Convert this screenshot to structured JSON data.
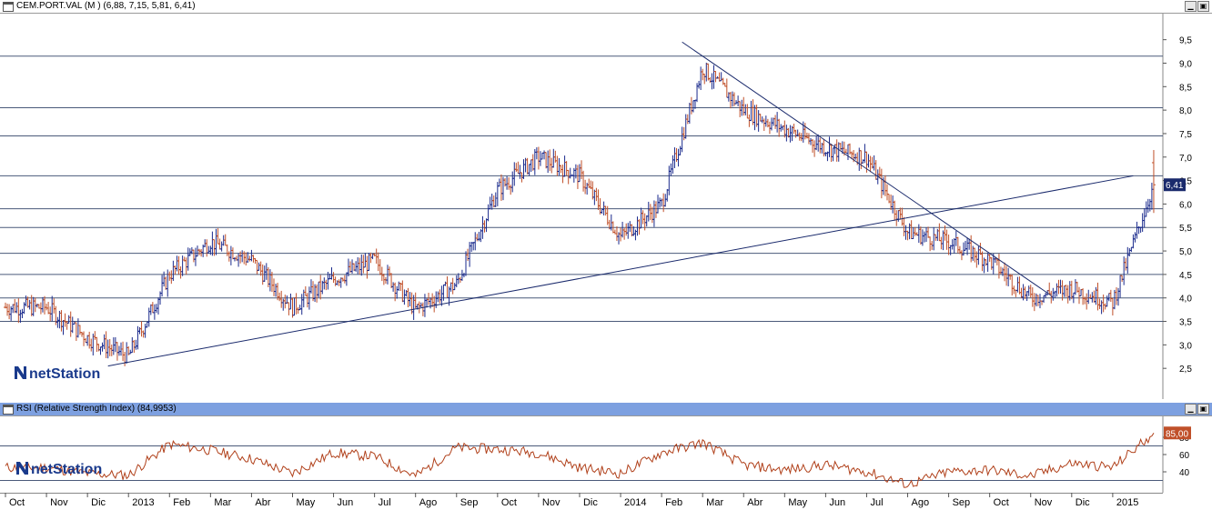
{
  "main_panel": {
    "title": "CEM.PORT.VAL (M ) (6,88, 7,15, 5,81, 6,41)",
    "watermark": "netStation",
    "minimize_icon": "minimize-icon",
    "maximize_icon": "maximize-icon"
  },
  "rsi_panel": {
    "title": "RSI (Relative Strength Index) (84,9953)",
    "watermark": "netStation",
    "header_color": "#7da0e0"
  },
  "x_axis_labels": [
    "Oct",
    "Nov",
    "Dic",
    "2013",
    "Feb",
    "Mar",
    "Abr",
    "May",
    "Jun",
    "Jul",
    "Ago",
    "Sep",
    "Oct",
    "Nov",
    "Dic",
    "2014",
    "Feb",
    "Mar",
    "Abr",
    "May",
    "Jun",
    "Jul",
    "Ago",
    "Sep",
    "Oct",
    "Nov",
    "Dic",
    "2015"
  ],
  "colors": {
    "up": "#1a2a8c",
    "down": "#c0502a",
    "line": "#1a2a6c",
    "rsi": "#b0401a",
    "grid": "#6b7a9a"
  },
  "chart_data": [
    {
      "type": "candlestick",
      "title": "CEM.PORT.VAL (M ) (6,88, 7,15, 5,81, 6,41)",
      "ohlc_last": {
        "open": 6.88,
        "high": 7.15,
        "low": 5.81,
        "close": 6.41
      },
      "last_value_label": "6,41",
      "y_ticks": [
        "2,5",
        "3,0",
        "3,5",
        "4,0",
        "4,5",
        "5,0",
        "5,5",
        "6,0",
        "6,5",
        "7,0",
        "7,5",
        "8,0",
        "8,5",
        "9,0",
        "9,5"
      ],
      "ylim": [
        2.0,
        9.9
      ],
      "horizontal_levels": [
        3.5,
        4.0,
        4.5,
        4.95,
        5.5,
        5.9,
        6.6,
        7.45,
        8.05,
        9.15
      ],
      "trendlines": [
        {
          "from": [
            "2012-12",
            2.55
          ],
          "to": [
            "2015-01",
            6.6
          ]
        },
        {
          "from": [
            "2014-02",
            9.45
          ],
          "to": [
            "2014-11",
            4.05
          ]
        }
      ],
      "monthly_close": [
        {
          "x": "2012-10",
          "value": 3.8
        },
        {
          "x": "2012-11",
          "value": 3.15
        },
        {
          "x": "2012-12",
          "value": 2.75
        },
        {
          "x": "2013-01",
          "value": 4.5
        },
        {
          "x": "2013-02",
          "value": 5.2
        },
        {
          "x": "2013-03",
          "value": 4.8
        },
        {
          "x": "2013-04",
          "value": 3.8
        },
        {
          "x": "2013-05",
          "value": 4.4
        },
        {
          "x": "2013-06",
          "value": 4.8
        },
        {
          "x": "2013-07",
          "value": 3.75
        },
        {
          "x": "2013-08",
          "value": 4.3
        },
        {
          "x": "2013-09",
          "value": 6.3
        },
        {
          "x": "2013-10",
          "value": 7.0
        },
        {
          "x": "2013-11",
          "value": 6.6
        },
        {
          "x": "2013-12",
          "value": 5.3
        },
        {
          "x": "2014-01",
          "value": 6.0
        },
        {
          "x": "2014-02",
          "value": 8.9
        },
        {
          "x": "2014-03",
          "value": 8.0
        },
        {
          "x": "2014-04",
          "value": 7.6
        },
        {
          "x": "2014-05",
          "value": 7.2
        },
        {
          "x": "2014-06",
          "value": 7.0
        },
        {
          "x": "2014-07",
          "value": 5.4
        },
        {
          "x": "2014-08",
          "value": 5.2
        },
        {
          "x": "2014-09",
          "value": 4.8
        },
        {
          "x": "2014-10",
          "value": 4.0
        },
        {
          "x": "2014-11",
          "value": 4.2
        },
        {
          "x": "2014-12",
          "value": 3.9
        },
        {
          "x": "2015-01",
          "value": 6.41
        }
      ]
    },
    {
      "type": "line",
      "title": "RSI (Relative Strength Index) (84,9953)",
      "last_value_label": "85,00",
      "y_ticks": [
        "40",
        "60",
        "80"
      ],
      "ylim": [
        20,
        100
      ],
      "horizontal_levels": [
        30,
        70
      ],
      "monthly_value": [
        {
          "x": "2012-10",
          "value": 45
        },
        {
          "x": "2012-11",
          "value": 38
        },
        {
          "x": "2012-12",
          "value": 36
        },
        {
          "x": "2013-01",
          "value": 72
        },
        {
          "x": "2013-02",
          "value": 65
        },
        {
          "x": "2013-03",
          "value": 55
        },
        {
          "x": "2013-04",
          "value": 38
        },
        {
          "x": "2013-05",
          "value": 62
        },
        {
          "x": "2013-06",
          "value": 58
        },
        {
          "x": "2013-07",
          "value": 35
        },
        {
          "x": "2013-08",
          "value": 68
        },
        {
          "x": "2013-09",
          "value": 66
        },
        {
          "x": "2013-10",
          "value": 62
        },
        {
          "x": "2013-11",
          "value": 45
        },
        {
          "x": "2013-12",
          "value": 38
        },
        {
          "x": "2014-01",
          "value": 62
        },
        {
          "x": "2014-02",
          "value": 74
        },
        {
          "x": "2014-03",
          "value": 48
        },
        {
          "x": "2014-04",
          "value": 42
        },
        {
          "x": "2014-05",
          "value": 48
        },
        {
          "x": "2014-06",
          "value": 40
        },
        {
          "x": "2014-07",
          "value": 25
        },
        {
          "x": "2014-08",
          "value": 40
        },
        {
          "x": "2014-09",
          "value": 42
        },
        {
          "x": "2014-10",
          "value": 35
        },
        {
          "x": "2014-11",
          "value": 50
        },
        {
          "x": "2014-12",
          "value": 45
        },
        {
          "x": "2015-01",
          "value": 85
        }
      ]
    }
  ]
}
